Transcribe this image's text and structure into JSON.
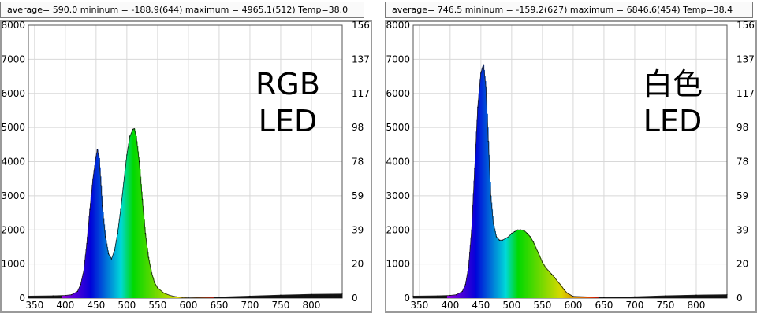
{
  "chart_data": [
    {
      "type": "area",
      "stats_text": "average= 590.0 mininum = -188.9(644) maximum = 4965.1(512) Temp=38.0",
      "annotation": [
        "RGB",
        "LED"
      ],
      "xlim": [
        340,
        850
      ],
      "ylim_left": [
        0,
        8000
      ],
      "ylim_right": [
        0,
        156
      ],
      "x_ticks": [
        350,
        400,
        450,
        500,
        550,
        600,
        650,
        700,
        750,
        800
      ],
      "y_ticks_left": [
        0,
        1000,
        2000,
        3000,
        4000,
        5000,
        6000,
        7000,
        8000
      ],
      "y_ticks_right": [
        0,
        20,
        39,
        59,
        78,
        98,
        117,
        137,
        156
      ],
      "grid": true,
      "series": [
        {
          "x": [
            340,
            380,
            400,
            410,
            420,
            425,
            430,
            435,
            440,
            445,
            450,
            452,
            455,
            458,
            460,
            465,
            470,
            475,
            480,
            485,
            490,
            495,
            500,
            505,
            510,
            512,
            515,
            520,
            525,
            530,
            535,
            540,
            545,
            550,
            560,
            570,
            580,
            590,
            600,
            650,
            700,
            750,
            800,
            850
          ],
          "values": [
            60,
            70,
            80,
            100,
            200,
            400,
            800,
            1600,
            2600,
            3500,
            4150,
            4350,
            4100,
            3300,
            2700,
            1800,
            1300,
            1150,
            1400,
            1900,
            2600,
            3400,
            4200,
            4750,
            4950,
            4965,
            4750,
            4000,
            2900,
            1900,
            1200,
            750,
            450,
            300,
            150,
            80,
            40,
            20,
            10,
            30,
            60,
            90,
            110,
            120
          ]
        }
      ]
    },
    {
      "type": "area",
      "stats_text": "average= 746.5 mininum = -159.2(627) maximum = 6846.6(454) Temp=38.4",
      "annotation": [
        "白色",
        "LED"
      ],
      "xlim": [
        340,
        850
      ],
      "ylim_left": [
        0,
        8000
      ],
      "ylim_right": [
        0,
        156
      ],
      "x_ticks": [
        350,
        400,
        450,
        500,
        550,
        600,
        650,
        700,
        750,
        800
      ],
      "y_ticks_left": [
        0,
        1000,
        2000,
        3000,
        4000,
        5000,
        6000,
        7000,
        8000
      ],
      "y_ticks_right": [
        0,
        20,
        39,
        59,
        78,
        98,
        117,
        137,
        156
      ],
      "grid": true,
      "series": [
        {
          "x": [
            340,
            380,
            400,
            410,
            420,
            425,
            430,
            435,
            440,
            445,
            450,
            454,
            458,
            462,
            466,
            470,
            475,
            480,
            485,
            490,
            495,
            500,
            505,
            510,
            515,
            520,
            525,
            530,
            535,
            540,
            545,
            550,
            555,
            560,
            565,
            570,
            575,
            580,
            585,
            590,
            600,
            650,
            700,
            750,
            800,
            850
          ],
          "values": [
            60,
            70,
            80,
            100,
            200,
            400,
            900,
            2000,
            3800,
            5600,
            6600,
            6847,
            6200,
            4600,
            3000,
            2200,
            1800,
            1700,
            1700,
            1750,
            1800,
            1900,
            1950,
            2000,
            2000,
            1980,
            1900,
            1800,
            1650,
            1450,
            1250,
            1050,
            900,
            800,
            700,
            600,
            480,
            380,
            250,
            150,
            50,
            20,
            40,
            70,
            90,
            100
          ]
        }
      ]
    }
  ]
}
